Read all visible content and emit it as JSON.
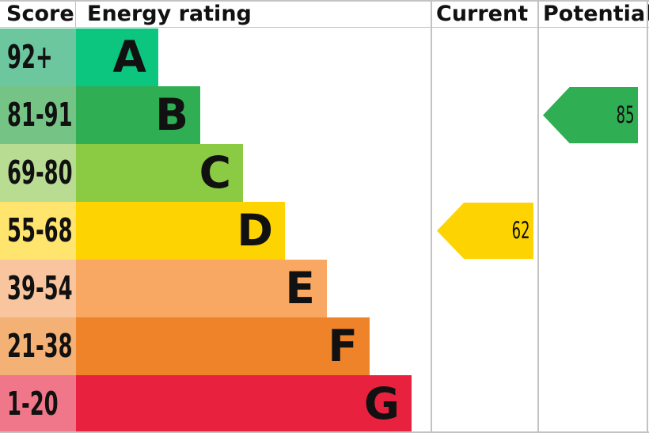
{
  "header": {
    "score": "Score",
    "energy_rating": "Energy rating",
    "current": "Current",
    "potential": "Potential"
  },
  "bands": [
    {
      "score_range": "92+",
      "letter": "A",
      "bar_color": "#0cc57e",
      "score_bg": "#6cc79f"
    },
    {
      "score_range": "81-91",
      "letter": "B",
      "bar_color": "#2fae53",
      "score_bg": "#75c486"
    },
    {
      "score_range": "69-80",
      "letter": "C",
      "bar_color": "#8bcb44",
      "score_bg": "#b9dc93"
    },
    {
      "score_range": "55-68",
      "letter": "D",
      "bar_color": "#fdd301",
      "score_bg": "#ffe46d"
    },
    {
      "score_range": "39-54",
      "letter": "E",
      "bar_color": "#f9a863",
      "score_bg": "#f8c59e"
    },
    {
      "score_range": "21-38",
      "letter": "F",
      "bar_color": "#ee8329",
      "score_bg": "#f4b176"
    },
    {
      "score_range": "1-20",
      "letter": "G",
      "bar_color": "#e8213f",
      "score_bg": "#f07689"
    }
  ],
  "current": {
    "label": "62",
    "value": 62,
    "band": "D",
    "band_index": 3,
    "color": "#fdd301"
  },
  "potential": {
    "label": "85",
    "value": 85,
    "band": "B",
    "band_index": 1,
    "color": "#2fae53"
  },
  "chart_data": {
    "type": "bar",
    "title": "Energy rating",
    "columns": [
      "Score",
      "Energy rating",
      "Current",
      "Potential"
    ],
    "categories": [
      "A",
      "B",
      "C",
      "D",
      "E",
      "F",
      "G"
    ],
    "score_ranges": [
      "92+",
      "81-91",
      "69-80",
      "55-68",
      "39-54",
      "21-38",
      "1-20"
    ],
    "band_colors": [
      "#0cc57e",
      "#2fae53",
      "#8bcb44",
      "#fdd301",
      "#f9a863",
      "#ee8329",
      "#e8213f"
    ],
    "bar_lengths_relative": [
      1,
      1.51,
      2.03,
      2.54,
      3.05,
      3.57,
      4.08
    ],
    "current": {
      "value": 62,
      "band": "D"
    },
    "potential": {
      "value": 85,
      "band": "B"
    },
    "legend_position": "none",
    "grid": false
  }
}
